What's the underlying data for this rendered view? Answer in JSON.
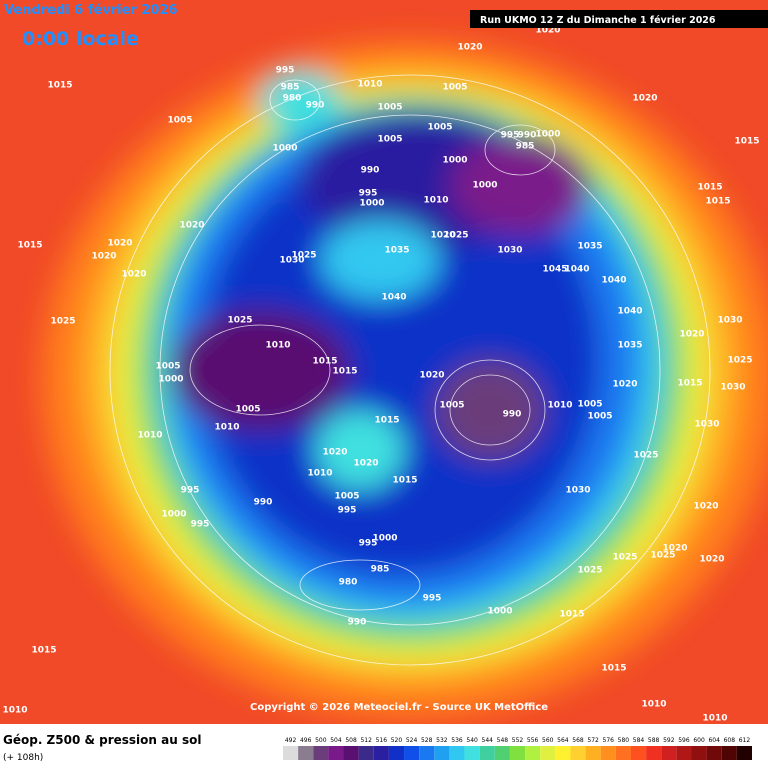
{
  "header": {
    "date": "Vendredi 6 février 2026",
    "time": "0:00 locale",
    "run": "Run UKMO 12 Z du Dimanche 1 février 2026"
  },
  "copyright": "Copyright © 2026 Meteociel.fr - Source UK MetOffice",
  "legend": {
    "title": "Géop. Z500 & pression au sol",
    "lead": "(+ 108h)"
  },
  "colorbar": {
    "values": [
      492,
      496,
      500,
      504,
      508,
      512,
      516,
      520,
      524,
      528,
      532,
      536,
      540,
      544,
      548,
      552,
      556,
      560,
      564,
      568,
      572,
      576,
      580,
      584,
      588,
      592,
      596,
      600,
      604,
      608,
      612
    ],
    "colors": [
      "#dcdcdc",
      "#8a7d90",
      "#6b3d7a",
      "#7a1a8a",
      "#5a1070",
      "#3a2a8a",
      "#2a1fa0",
      "#1030c8",
      "#1050e8",
      "#1a78f0",
      "#20a0f0",
      "#30c8f0",
      "#40e0e0",
      "#40d0a0",
      "#50d070",
      "#80e040",
      "#b0f040",
      "#e0f040",
      "#fff030",
      "#ffd030",
      "#ffb020",
      "#ff9020",
      "#ff7020",
      "#ff5020",
      "#f03020",
      "#d02020",
      "#b01818",
      "#901010",
      "#700a0a",
      "#500505",
      "#200000"
    ]
  },
  "pressure_labels": [
    1015,
    1005,
    995,
    985,
    980,
    990,
    1000,
    1010,
    1005,
    1005,
    1005,
    1005,
    990,
    995,
    1000,
    1000,
    1000,
    995,
    990,
    985,
    1000,
    1020,
    1020,
    1015,
    1015,
    1015,
    1010,
    1020,
    1025,
    1035,
    1030,
    1025,
    1040,
    1030,
    1035,
    1045,
    1040,
    1040,
    1040,
    1015,
    1020,
    1020,
    1020,
    1020,
    1025,
    1025,
    1010,
    1015,
    1015,
    1005,
    1000,
    1005,
    1010,
    1010,
    1020,
    1005,
    990,
    1010,
    1005,
    1005,
    1035,
    1020,
    1015,
    1020,
    1030,
    1025,
    1030,
    1015,
    1020,
    1020,
    1010,
    1015,
    1025,
    1030,
    1030,
    995,
    1000,
    995,
    990,
    1005,
    995,
    995,
    1000,
    985,
    980,
    995,
    1000,
    1015,
    1020,
    1025,
    1025,
    1020,
    1025,
    1015,
    1020,
    1015,
    1010,
    1010,
    1010,
    990,
    1020
  ]
}
